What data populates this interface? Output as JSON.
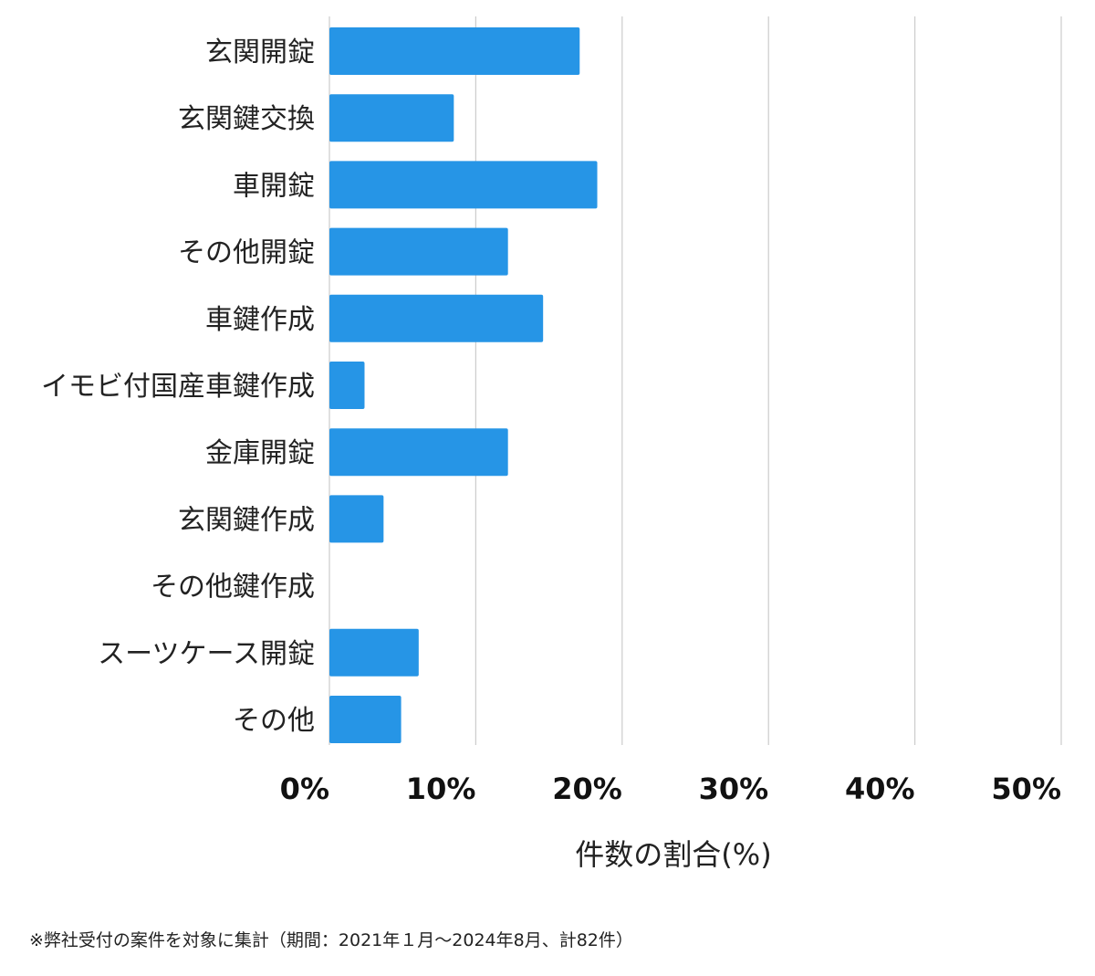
{
  "chart_data": {
    "type": "bar",
    "orientation": "horizontal",
    "categories": [
      "玄関開錠",
      "玄関鍵交換",
      "車開錠",
      "その他開錠",
      "車鍵作成",
      "イモビ付国産車鍵作成",
      "金庫開錠",
      "玄関鍵作成",
      "その他鍵作成",
      "スーツケース開錠",
      "その他"
    ],
    "values": [
      17.1,
      8.5,
      18.3,
      12.2,
      14.6,
      2.4,
      12.2,
      3.7,
      0,
      6.1,
      4.9
    ],
    "xlabel": "件数の割合(%)",
    "xlim": [
      0,
      50
    ],
    "xticks": [
      0,
      10,
      20,
      30,
      40,
      50
    ],
    "tick_labels": [
      "0%",
      "10%",
      "20%",
      "30%",
      "40%",
      "50%"
    ],
    "grid": "vertical",
    "bar_color": "#2695e6",
    "grid_color": "#cccccc"
  },
  "footnote": "※弊社受付の案件を対象に集計（期間：2021年１月〜2024年8月、計82件）"
}
